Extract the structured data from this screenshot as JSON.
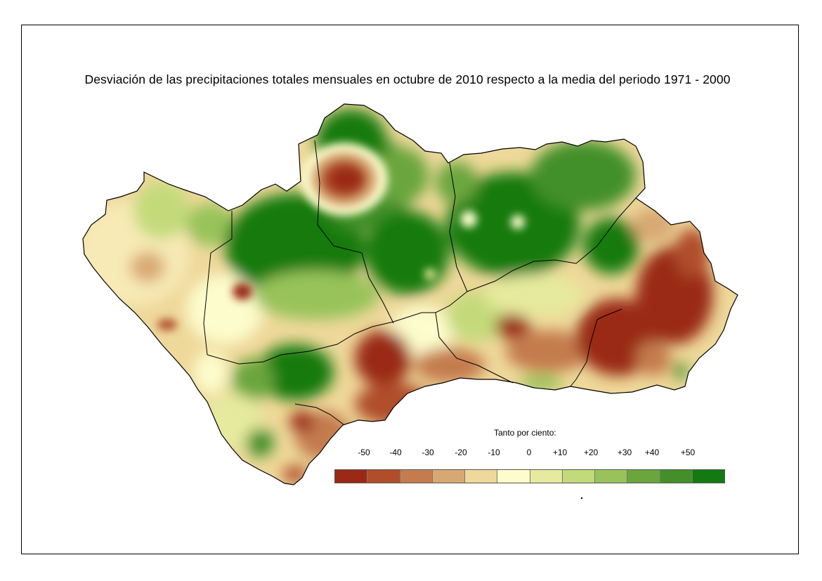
{
  "title": "Desviación de las precipitaciones totales mensuales en octubre de 2010 respecto a la media del periodo 1971 - 2000",
  "legend": {
    "title": "Tanto por ciento:",
    "labels": [
      "-50",
      "-40",
      "-30",
      "-20",
      "-10",
      "0",
      "+10",
      "+20",
      "+30",
      "+40",
      "+50"
    ],
    "colors": [
      "#9a2a16",
      "#b04d2a",
      "#c47c4e",
      "#d8a872",
      "#eed89a",
      "#fdfccc",
      "#e6ea9e",
      "#c3da7a",
      "#98c35a",
      "#6aa63c",
      "#43902a",
      "#127a10"
    ]
  },
  "map": {
    "base_color": "#eed89a",
    "border_color": "#000000"
  }
}
